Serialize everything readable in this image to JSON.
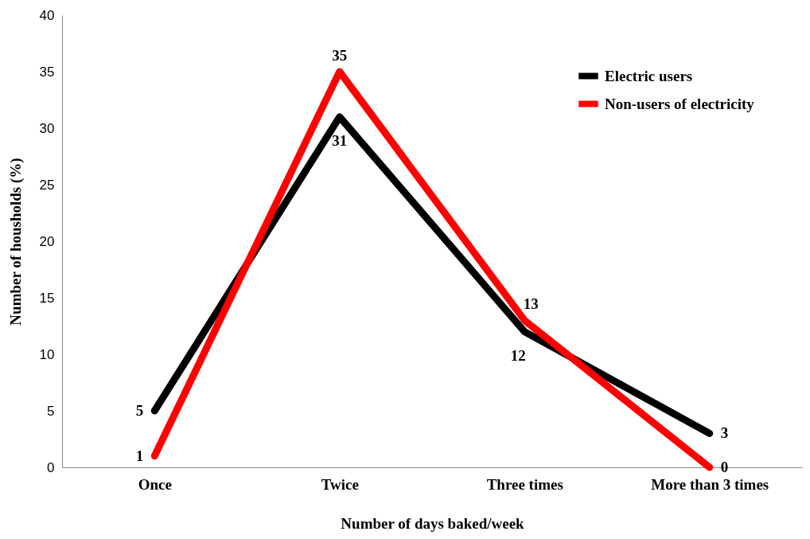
{
  "chart_data": {
    "type": "line",
    "xlabel": "Number of days baked/week",
    "ylabel": "Number of housholds (%)",
    "categories": [
      "Once",
      "Twice",
      "Three times",
      "More than 3 times"
    ],
    "series": [
      {
        "name": "Electric users",
        "color": "#000000",
        "values": [
          5,
          31,
          12,
          3
        ]
      },
      {
        "name": "Non-users of electricity",
        "color": "#ff0000",
        "values": [
          1,
          35,
          13,
          0
        ]
      }
    ],
    "ylim": [
      0,
      40
    ],
    "yticks": [
      0,
      5,
      10,
      15,
      20,
      25,
      30,
      35,
      40
    ],
    "grid": false,
    "legend": "top right",
    "data_labels": true,
    "marker": "none",
    "line_style": "solid"
  }
}
